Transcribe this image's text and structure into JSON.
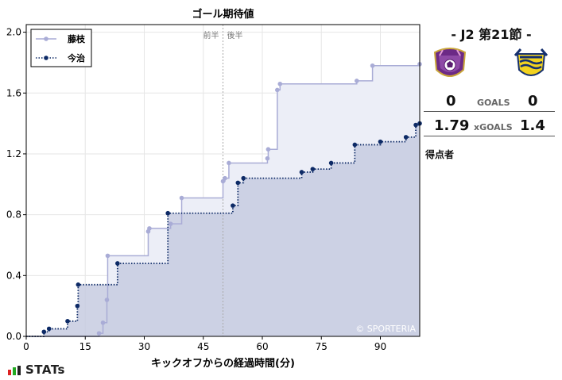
{
  "chart_data": {
    "type": "line",
    "title": "ゴール期待値",
    "xlabel": "キックオフからの経過時間(分)",
    "ylabel": "",
    "xlim": [
      0,
      100
    ],
    "ylim": [
      0,
      2.05
    ],
    "xticks": [
      0,
      15,
      30,
      45,
      60,
      75,
      90
    ],
    "yticks": [
      0.0,
      0.4,
      0.8,
      1.2,
      1.6,
      2.0
    ],
    "ytick_labels": [
      "0.0",
      "0.4",
      "0.8",
      "1.2",
      "1.6",
      "2.0"
    ],
    "grid": true,
    "step": "post",
    "legend_position": "top-left",
    "halftime_marker": {
      "x": 50,
      "left_label": "前半",
      "right_label": "後半"
    },
    "watermark": "© SPORTERIA",
    "series": [
      {
        "name": "藤枝",
        "color": "#a9acd6",
        "fill": "#eceef7",
        "line_style": "solid",
        "points": [
          {
            "x": 0,
            "y": 0
          },
          {
            "x": 18.5,
            "y": 0.02
          },
          {
            "x": 19.5,
            "y": 0.09
          },
          {
            "x": 20.5,
            "y": 0.24
          },
          {
            "x": 20.7,
            "y": 0.53
          },
          {
            "x": 31,
            "y": 0.69
          },
          {
            "x": 31.3,
            "y": 0.71
          },
          {
            "x": 36.7,
            "y": 0.74
          },
          {
            "x": 39.5,
            "y": 0.91
          },
          {
            "x": 50,
            "y": 1.02
          },
          {
            "x": 50.5,
            "y": 1.04
          },
          {
            "x": 51.5,
            "y": 1.14
          },
          {
            "x": 61.3,
            "y": 1.17
          },
          {
            "x": 61.5,
            "y": 1.23
          },
          {
            "x": 63.8,
            "y": 1.62
          },
          {
            "x": 64.5,
            "y": 1.66
          },
          {
            "x": 84,
            "y": 1.68
          },
          {
            "x": 88,
            "y": 1.78
          },
          {
            "x": 100,
            "y": 1.79
          }
        ]
      },
      {
        "name": "今治",
        "color": "#0d2a66",
        "fill": "#c7cbe1",
        "line_style": "dotted",
        "points": [
          {
            "x": 0,
            "y": 0
          },
          {
            "x": 4.5,
            "y": 0.03
          },
          {
            "x": 5.8,
            "y": 0.05
          },
          {
            "x": 10.5,
            "y": 0.1
          },
          {
            "x": 13,
            "y": 0.2
          },
          {
            "x": 13.2,
            "y": 0.34
          },
          {
            "x": 23.2,
            "y": 0.48
          },
          {
            "x": 36,
            "y": 0.81
          },
          {
            "x": 52.5,
            "y": 0.86
          },
          {
            "x": 53.8,
            "y": 1.01
          },
          {
            "x": 55.2,
            "y": 1.04
          },
          {
            "x": 70,
            "y": 1.08
          },
          {
            "x": 72.8,
            "y": 1.1
          },
          {
            "x": 77.5,
            "y": 1.14
          },
          {
            "x": 83.5,
            "y": 1.26
          },
          {
            "x": 90,
            "y": 1.28
          },
          {
            "x": 96.5,
            "y": 1.31
          },
          {
            "x": 99,
            "y": 1.39
          },
          {
            "x": 100,
            "y": 1.4
          }
        ]
      }
    ]
  },
  "match": {
    "title": "- J2 第21節 -",
    "goals_label": "GOALS",
    "xg_label": "xGOALS",
    "home_goals": "0",
    "away_goals": "0",
    "home_xg": "1.79",
    "away_xg": "1.4",
    "scorers_label": "得点者"
  },
  "brand": {
    "label": "STATs",
    "bar_colors": [
      "#d22",
      "#2a2",
      "#222"
    ]
  },
  "crests": {
    "home": "fujieda-crest-icon",
    "away": "imabari-crest-icon"
  }
}
